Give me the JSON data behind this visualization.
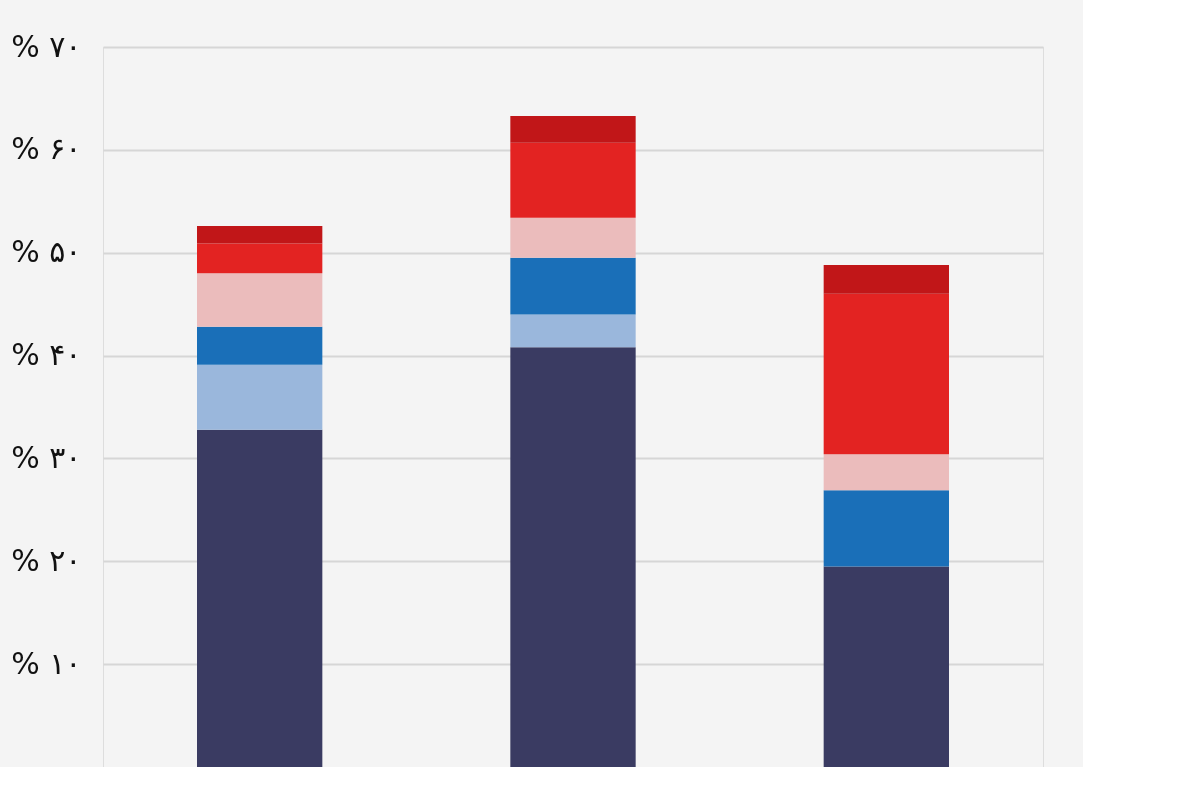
{
  "chart_data": {
    "type": "bar",
    "stacked": true,
    "categories": [
      null,
      null,
      null
    ],
    "series": [
      {
        "color": "#3a3b62",
        "values": [
          32.8,
          40.8,
          19.5
        ]
      },
      {
        "color": "#9ab7dc",
        "values": [
          6.3,
          3.2,
          0
        ]
      },
      {
        "color": "#1a6fb8",
        "values": [
          3.7,
          5.5,
          7.4
        ]
      },
      {
        "color": "#ebbcbc",
        "values": [
          5.2,
          3.9,
          3.5
        ]
      },
      {
        "color": "#e32322",
        "values": [
          2.9,
          7.3,
          15.6
        ]
      },
      {
        "color": "#c11618",
        "values": [
          1.7,
          2.6,
          2.8
        ]
      }
    ],
    "ylim": [
      0,
      70
    ],
    "yticks": [
      {
        "value": 10,
        "label": "% ۱۰"
      },
      {
        "value": 20,
        "label": "% ۲۰"
      },
      {
        "value": 30,
        "label": "% ۳۰"
      },
      {
        "value": 40,
        "label": "% ۴۰"
      },
      {
        "value": 50,
        "label": "% ۵۰"
      },
      {
        "value": 60,
        "label": "% ۶۰"
      },
      {
        "value": 70,
        "label": "% ۷۰"
      }
    ],
    "grid": "y",
    "legend": false,
    "tick_labels": "y"
  }
}
